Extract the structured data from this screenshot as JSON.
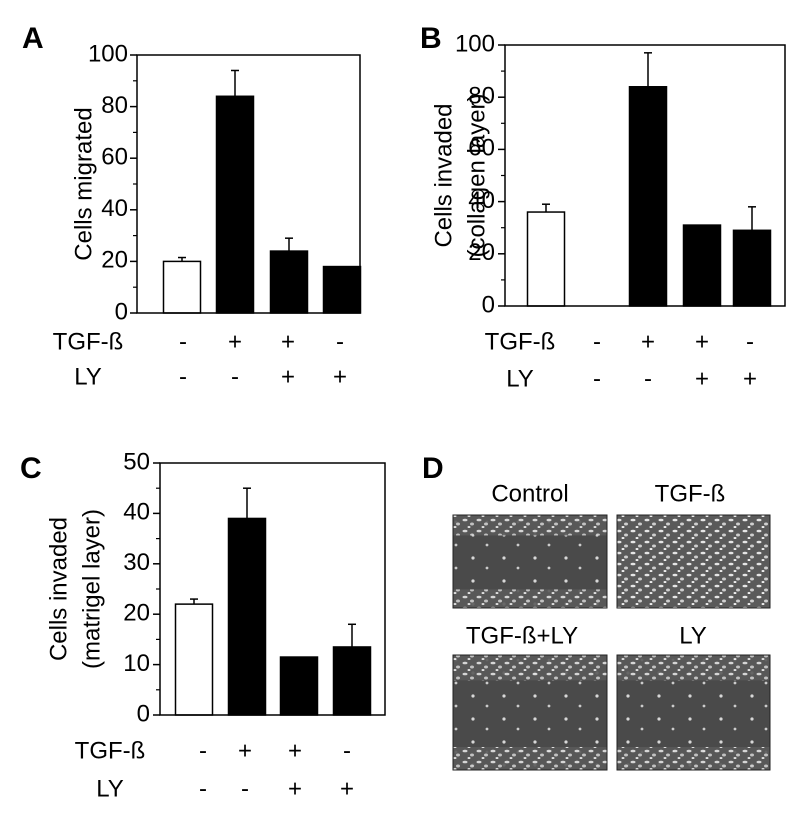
{
  "chart_data": [
    {
      "type": "bar",
      "panel_label": "A",
      "ylabel": [
        "Cells migrated"
      ],
      "ylim": [
        0,
        100
      ],
      "yticks": [
        0,
        20,
        40,
        60,
        80,
        100
      ],
      "yminor": [
        10,
        30,
        50,
        70,
        90
      ],
      "conditions": [
        {
          "name": "TGF-ß",
          "values": [
            "-",
            "+",
            "+",
            "-"
          ]
        },
        {
          "name": "LY",
          "values": [
            "-",
            "-",
            "+",
            "+"
          ]
        }
      ],
      "series": [
        {
          "colors": [
            "#ffffff",
            "#000000",
            "#000000",
            "#000000"
          ],
          "values": [
            20,
            84,
            24,
            18
          ],
          "errors": [
            1.5,
            10,
            5,
            null
          ]
        }
      ]
    },
    {
      "type": "bar",
      "panel_label": "B",
      "ylabel": [
        "Cells invaded",
        "(collagen layer)"
      ],
      "ylim": [
        0,
        100
      ],
      "yticks": [
        0,
        20,
        40,
        60,
        80,
        100
      ],
      "yminor": [
        10,
        30,
        50,
        70,
        90
      ],
      "conditions": [
        {
          "name": "TGF-ß",
          "values": [
            "-",
            "+",
            "+",
            "-"
          ]
        },
        {
          "name": "LY",
          "values": [
            "-",
            "-",
            "+",
            "+"
          ]
        }
      ],
      "series": [
        {
          "colors": [
            "#ffffff",
            "#000000",
            "#000000",
            "#000000"
          ],
          "values": [
            36,
            84,
            31,
            29
          ],
          "errors": [
            3,
            13,
            null,
            9
          ]
        }
      ]
    },
    {
      "type": "bar",
      "panel_label": "C",
      "ylabel": [
        "Cells invaded",
        "(matrigel layer)"
      ],
      "ylim": [
        0,
        50
      ],
      "yticks": [
        0,
        10,
        20,
        30,
        40,
        50
      ],
      "yminor": [
        5,
        15,
        25,
        35,
        45
      ],
      "conditions": [
        {
          "name": "TGF-ß",
          "values": [
            "-",
            "+",
            "+",
            "-"
          ]
        },
        {
          "name": "LY",
          "values": [
            "-",
            "-",
            "+",
            "+"
          ]
        }
      ],
      "series": [
        {
          "colors": [
            "#ffffff",
            "#000000",
            "#000000",
            "#000000"
          ],
          "values": [
            22,
            39,
            11.5,
            13.5
          ],
          "errors": [
            1,
            6,
            null,
            4.5
          ]
        }
      ]
    }
  ],
  "panel_d": {
    "panel_label": "D",
    "images": [
      "Control",
      "TGF-ß",
      "TGF-ß+LY",
      "LY"
    ]
  }
}
